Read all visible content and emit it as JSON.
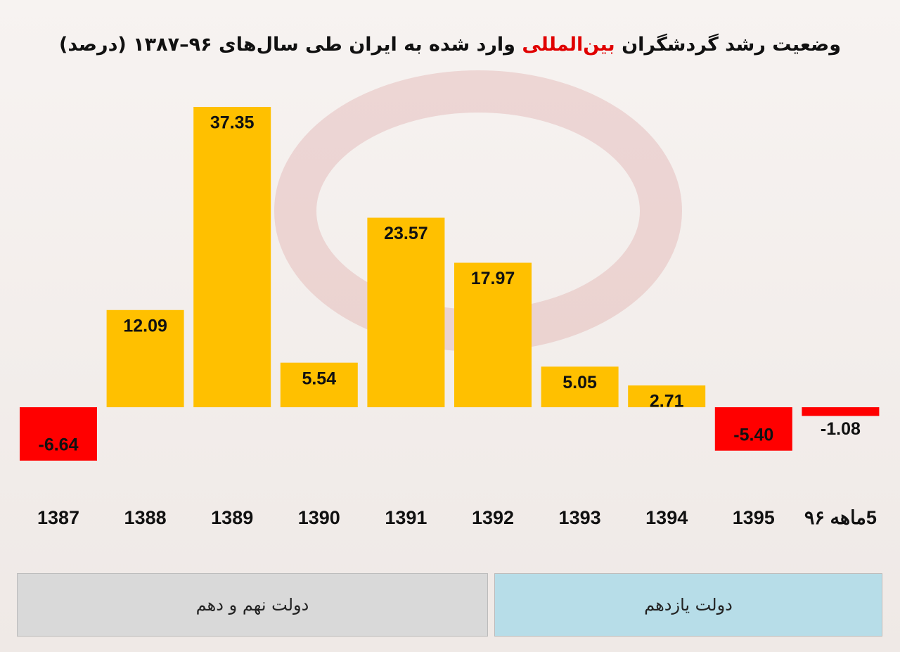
{
  "chart_data": {
    "type": "bar",
    "title_parts": [
      "وضعیت رشد گردشگران ",
      "بین‌المللی",
      " وارد شده به ایران طی سال‌های ۹۶–۱۳۸۷ (درصد)"
    ],
    "title_highlight_color": "#e00000",
    "categories": [
      "1387",
      "1388",
      "1389",
      "1390",
      "1391",
      "1392",
      "1393",
      "1394",
      "1395",
      "5ماهه ۹۶"
    ],
    "values": [
      -6.64,
      12.09,
      37.35,
      5.54,
      23.57,
      17.97,
      5.05,
      2.71,
      -5.4,
      -1.08
    ],
    "value_labels": [
      "-6.64",
      "12.09",
      "37.35",
      "5.54",
      "23.57",
      "17.97",
      "5.05",
      "2.71",
      "-5.40",
      "-1.08"
    ],
    "positive_color": "#ffc000",
    "negative_color": "#ff0000",
    "groups": [
      {
        "label": "دولت نهم و دهم",
        "color": "#d9d9d9"
      },
      {
        "label": "دولت یازدهم",
        "color": "#b7dde8"
      }
    ]
  }
}
